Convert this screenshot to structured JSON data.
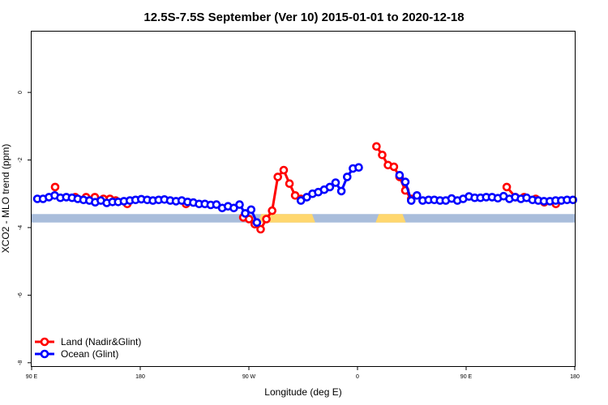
{
  "chart_data": {
    "type": "line",
    "title": "12.5S-7.5S September (Ver 10)   2015-01-01 to 2020-12-18",
    "xlabel": "Longitude (deg E)",
    "ylabel": "XCO2 - MLO trend (ppm)",
    "xlim": [
      90,
      450
    ],
    "ylim": [
      -8.1,
      1.8
    ],
    "x_ticks": [
      {
        "value": 90,
        "label": "90 E"
      },
      {
        "value": 162,
        "label": "180"
      },
      {
        "value": 234,
        "label": "90 W"
      },
      {
        "value": 306,
        "label": "0"
      },
      {
        "value": 378,
        "label": "90 E"
      },
      {
        "value": 450,
        "label": "180"
      }
    ],
    "y_ticks": [
      {
        "value": 0,
        "label": "0"
      },
      {
        "value": -2,
        "label": "-2"
      },
      {
        "value": -4,
        "label": "-4"
      },
      {
        "value": -6,
        "label": "-6"
      },
      {
        "value": -8,
        "label": "-8"
      }
    ],
    "grid": false,
    "legend_position": "bottom-left",
    "series": [
      {
        "name": "Land (Nadir&Glint)",
        "color": "#ff0000",
        "points": [
          [
            105.6,
            -2.8
          ],
          [
            118.9,
            -3.1
          ],
          [
            126.1,
            -3.1
          ],
          [
            131.9,
            -3.1
          ],
          [
            137.6,
            -3.15
          ],
          [
            141.9,
            -3.15
          ],
          [
            145.7,
            -3.2
          ],
          [
            153.4,
            -3.3
          ],
          [
            192.3,
            -3.3
          ],
          [
            230.3,
            -3.7
          ],
          [
            234.1,
            -3.75
          ],
          [
            237.9,
            -3.9
          ],
          [
            241.8,
            -4.05
          ],
          [
            245.6,
            -3.75
          ],
          [
            249.4,
            -3.5
          ],
          [
            253.2,
            -2.5
          ],
          [
            257.1,
            -2.3
          ],
          [
            260.9,
            -2.7
          ],
          [
            264.7,
            -3.05
          ],
          [
            268.5,
            -3.15
          ],
          [
            318.6,
            -1.6
          ],
          [
            322.4,
            -1.85
          ],
          [
            326.2,
            -2.15
          ],
          [
            330.1,
            -2.2
          ],
          [
            333.9,
            -2.5
          ],
          [
            337.7,
            -2.9
          ],
          [
            341.6,
            -3.15
          ],
          [
            404.9,
            -2.8
          ],
          [
            410.7,
            -3.1
          ],
          [
            416.4,
            -3.1
          ],
          [
            424.1,
            -3.15
          ],
          [
            429.8,
            -3.25
          ],
          [
            437.5,
            -3.3
          ]
        ]
      },
      {
        "name": "Ocean (Glint)",
        "color": "#0000ff",
        "points": [
          [
            93.8,
            -3.15
          ],
          [
            97.6,
            -3.15
          ],
          [
            101.5,
            -3.1
          ],
          [
            105.3,
            -3.05
          ],
          [
            109.1,
            -3.12
          ],
          [
            113.0,
            -3.1
          ],
          [
            116.8,
            -3.12
          ],
          [
            120.6,
            -3.15
          ],
          [
            124.4,
            -3.18
          ],
          [
            128.3,
            -3.2
          ],
          [
            132.1,
            -3.25
          ],
          [
            135.9,
            -3.2
          ],
          [
            139.8,
            -3.27
          ],
          [
            143.6,
            -3.24
          ],
          [
            147.4,
            -3.24
          ],
          [
            151.2,
            -3.22
          ],
          [
            155.1,
            -3.2
          ],
          [
            158.9,
            -3.18
          ],
          [
            162.7,
            -3.16
          ],
          [
            166.6,
            -3.18
          ],
          [
            170.4,
            -3.2
          ],
          [
            174.2,
            -3.18
          ],
          [
            178.0,
            -3.17
          ],
          [
            181.9,
            -3.2
          ],
          [
            185.7,
            -3.22
          ],
          [
            189.5,
            -3.2
          ],
          [
            193.4,
            -3.24
          ],
          [
            197.2,
            -3.26
          ],
          [
            201.0,
            -3.3
          ],
          [
            204.8,
            -3.3
          ],
          [
            208.7,
            -3.33
          ],
          [
            212.5,
            -3.32
          ],
          [
            216.3,
            -3.42
          ],
          [
            220.2,
            -3.37
          ],
          [
            224.0,
            -3.42
          ],
          [
            227.8,
            -3.32
          ],
          [
            231.6,
            -3.58
          ],
          [
            235.5,
            -3.47
          ],
          [
            239.3,
            -3.85
          ],
          [
            268.5,
            -3.2
          ],
          [
            272.4,
            -3.1
          ],
          [
            276.2,
            -3.0
          ],
          [
            280.0,
            -2.95
          ],
          [
            283.9,
            -2.88
          ],
          [
            287.7,
            -2.8
          ],
          [
            291.5,
            -2.67
          ],
          [
            295.3,
            -2.92
          ],
          [
            299.2,
            -2.5
          ],
          [
            303.0,
            -2.25
          ],
          [
            306.8,
            -2.22
          ],
          [
            333.9,
            -2.45
          ],
          [
            337.7,
            -2.65
          ],
          [
            341.6,
            -3.2
          ],
          [
            345.4,
            -3.05
          ],
          [
            349.2,
            -3.2
          ],
          [
            353.1,
            -3.18
          ],
          [
            356.9,
            -3.18
          ],
          [
            360.7,
            -3.2
          ],
          [
            364.5,
            -3.2
          ],
          [
            368.4,
            -3.14
          ],
          [
            372.2,
            -3.2
          ],
          [
            376.0,
            -3.15
          ],
          [
            379.9,
            -3.08
          ],
          [
            383.7,
            -3.12
          ],
          [
            387.5,
            -3.12
          ],
          [
            391.3,
            -3.1
          ],
          [
            395.2,
            -3.1
          ],
          [
            399.0,
            -3.13
          ],
          [
            402.8,
            -3.07
          ],
          [
            406.7,
            -3.15
          ],
          [
            410.5,
            -3.1
          ],
          [
            414.3,
            -3.15
          ],
          [
            418.1,
            -3.12
          ],
          [
            422.0,
            -3.18
          ],
          [
            425.8,
            -3.2
          ],
          [
            429.6,
            -3.22
          ],
          [
            433.5,
            -3.22
          ],
          [
            437.3,
            -3.2
          ],
          [
            441.1,
            -3.2
          ],
          [
            444.9,
            -3.18
          ],
          [
            448.8,
            -3.18
          ]
        ]
      }
    ],
    "surface_band": {
      "y_range": [
        -3.6,
        -3.85
      ],
      "ocean_color": "#a9bddb",
      "land_color": "#ffd76e",
      "land_segments": [
        [
          240,
          278
        ],
        [
          318,
          338
        ]
      ]
    }
  }
}
